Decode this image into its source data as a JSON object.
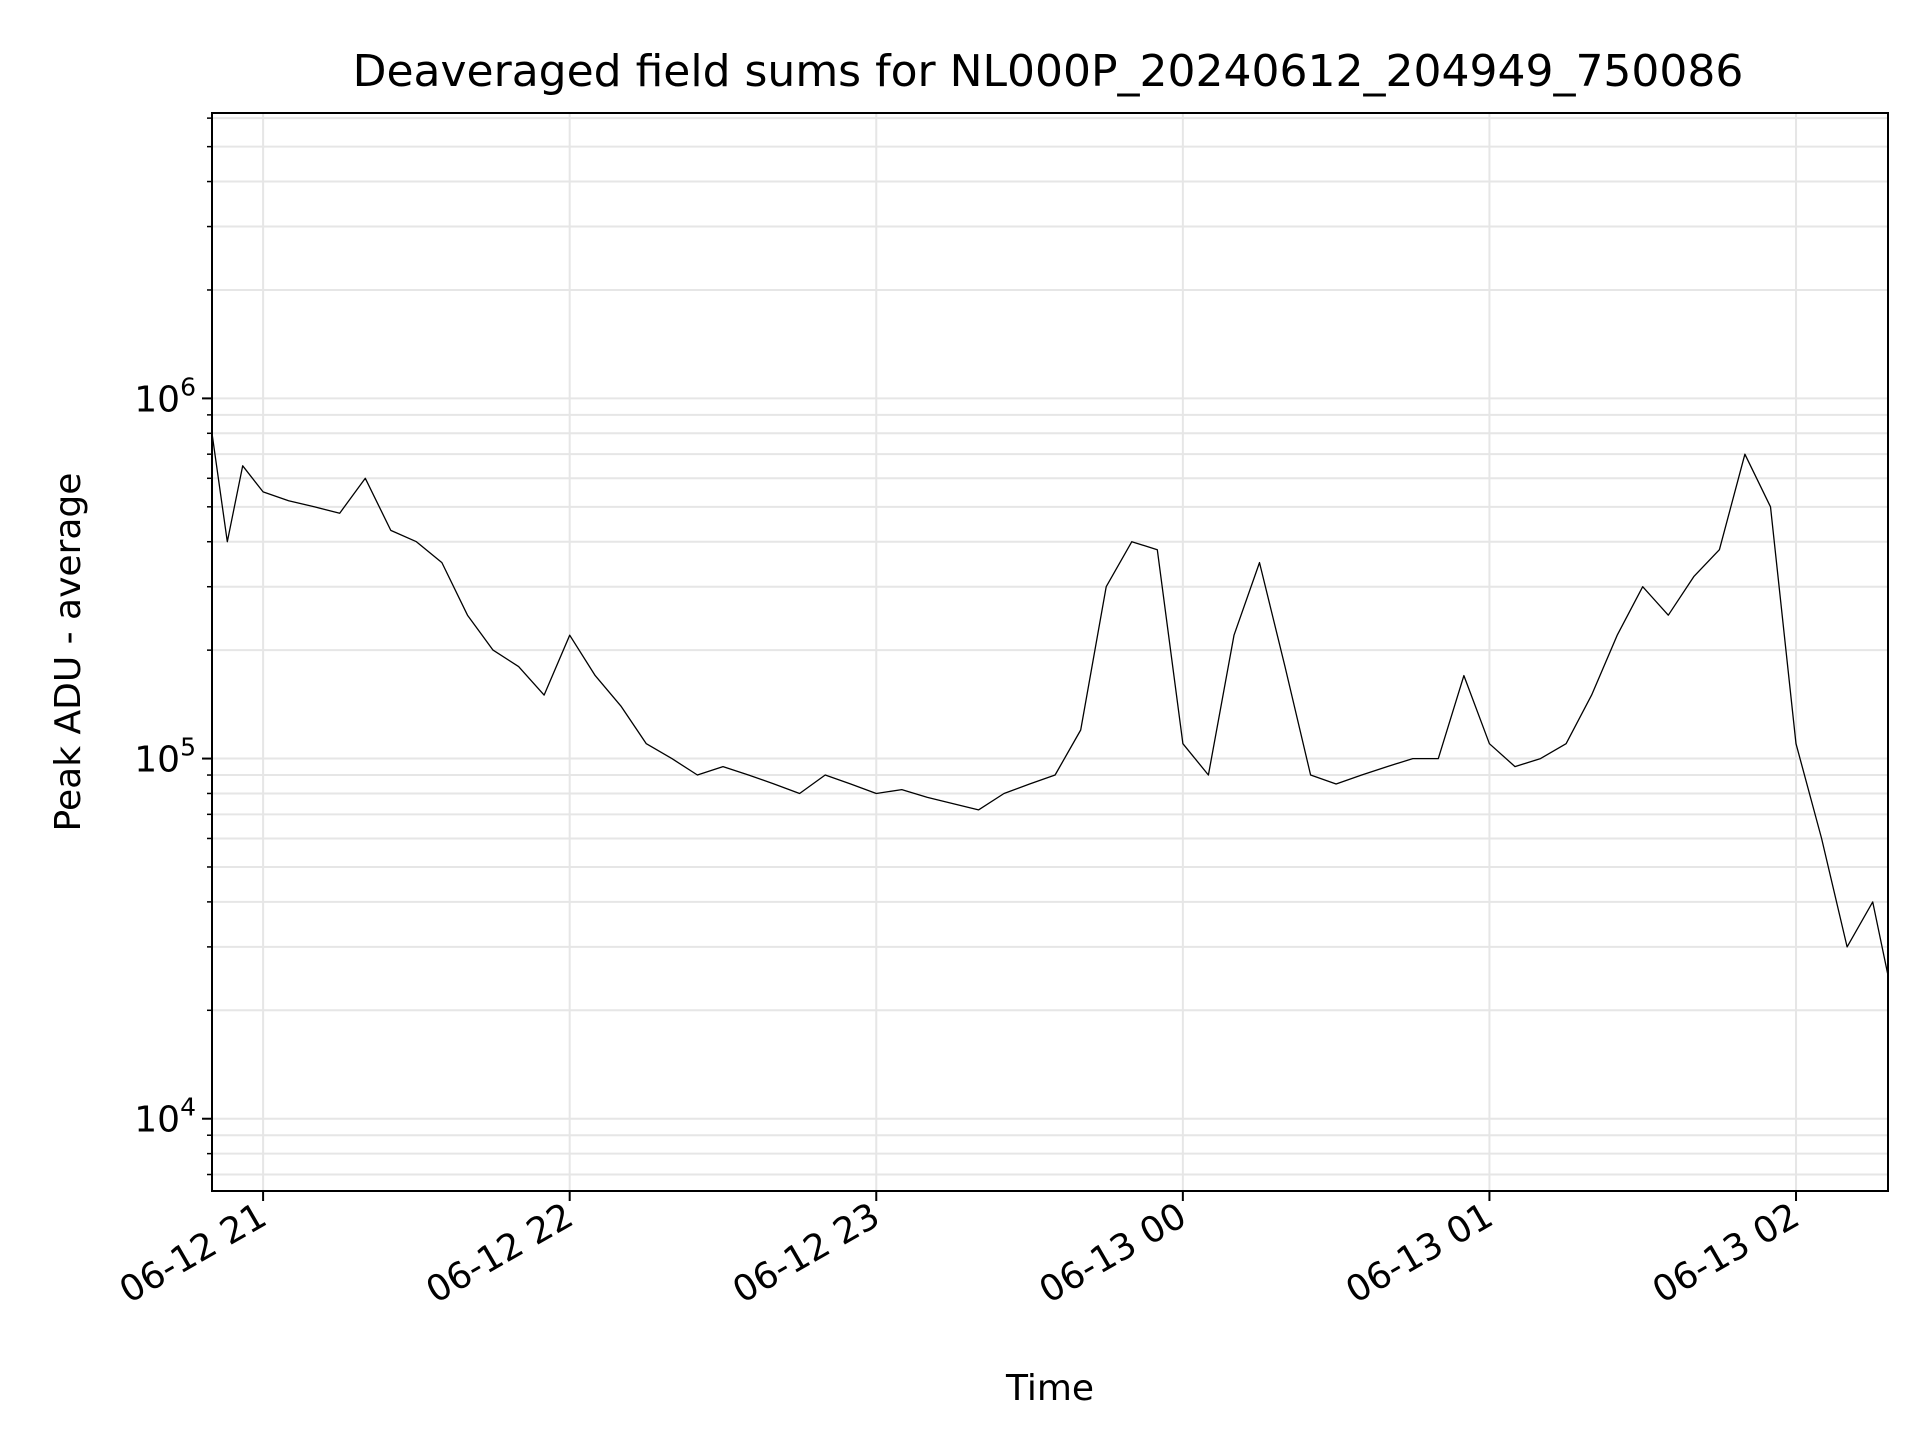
{
  "chart_data": {
    "type": "line",
    "title": "Deaveraged field sums for NL000P_20240612_204949_750086",
    "xlabel": "Time",
    "ylabel": "Peak ADU - average",
    "x_scale": "time",
    "y_scale": "log",
    "x_range": [
      "2024-06-12 20:50",
      "2024-06-13 02:18"
    ],
    "ylim": [
      6300,
      6200000
    ],
    "grid": true,
    "line_color": "#000000",
    "x_ticks": [
      "06-12 21",
      "06-12 22",
      "06-12 23",
      "06-13 00",
      "06-13 01",
      "06-13 02"
    ],
    "y_ticks": [
      {
        "base": "10",
        "exp": "4",
        "value": 10000
      },
      {
        "base": "10",
        "exp": "5",
        "value": 100000
      },
      {
        "base": "10",
        "exp": "6",
        "value": 1000000
      }
    ],
    "series": [
      {
        "x": [
          "2024-06-12 20:50",
          "2024-06-12 20:53",
          "2024-06-12 20:56",
          "2024-06-12 21:00",
          "2024-06-12 21:05",
          "2024-06-12 21:10",
          "2024-06-12 21:15",
          "2024-06-12 21:20",
          "2024-06-12 21:25",
          "2024-06-12 21:30",
          "2024-06-12 21:35",
          "2024-06-12 21:40",
          "2024-06-12 21:45",
          "2024-06-12 21:50",
          "2024-06-12 21:55",
          "2024-06-12 22:00",
          "2024-06-12 22:05",
          "2024-06-12 22:10",
          "2024-06-12 22:15",
          "2024-06-12 22:20",
          "2024-06-12 22:25",
          "2024-06-12 22:30",
          "2024-06-12 22:35",
          "2024-06-12 22:40",
          "2024-06-12 22:45",
          "2024-06-12 22:50",
          "2024-06-12 22:55",
          "2024-06-12 23:00",
          "2024-06-12 23:05",
          "2024-06-12 23:10",
          "2024-06-12 23:15",
          "2024-06-12 23:20",
          "2024-06-12 23:25",
          "2024-06-12 23:30",
          "2024-06-12 23:35",
          "2024-06-12 23:40",
          "2024-06-12 23:45",
          "2024-06-12 23:50",
          "2024-06-12 23:55",
          "2024-06-13 00:00",
          "2024-06-13 00:05",
          "2024-06-13 00:10",
          "2024-06-13 00:15",
          "2024-06-13 00:20",
          "2024-06-13 00:25",
          "2024-06-13 00:30",
          "2024-06-13 00:35",
          "2024-06-13 00:40",
          "2024-06-13 00:45",
          "2024-06-13 00:50",
          "2024-06-13 00:55",
          "2024-06-13 01:00",
          "2024-06-13 01:05",
          "2024-06-13 01:10",
          "2024-06-13 01:15",
          "2024-06-13 01:20",
          "2024-06-13 01:25",
          "2024-06-13 01:30",
          "2024-06-13 01:35",
          "2024-06-13 01:40",
          "2024-06-13 01:45",
          "2024-06-13 01:50",
          "2024-06-13 01:55",
          "2024-06-13 02:00",
          "2024-06-13 02:05",
          "2024-06-13 02:10",
          "2024-06-13 02:15",
          "2024-06-13 02:18"
        ],
        "y": [
          800000,
          400000,
          650000,
          550000,
          520000,
          500000,
          480000,
          600000,
          430000,
          400000,
          350000,
          250000,
          200000,
          180000,
          150000,
          220000,
          170000,
          140000,
          110000,
          100000,
          90000,
          95000,
          90000,
          85000,
          80000,
          90000,
          85000,
          80000,
          82000,
          78000,
          75000,
          72000,
          80000,
          85000,
          90000,
          120000,
          300000,
          400000,
          380000,
          110000,
          90000,
          220000,
          350000,
          180000,
          90000,
          85000,
          90000,
          95000,
          100000,
          100000,
          170000,
          110000,
          95000,
          100000,
          110000,
          150000,
          220000,
          300000,
          250000,
          320000,
          380000,
          700000,
          500000,
          110000,
          60000,
          30000,
          40000,
          25000
        ]
      }
    ]
  }
}
